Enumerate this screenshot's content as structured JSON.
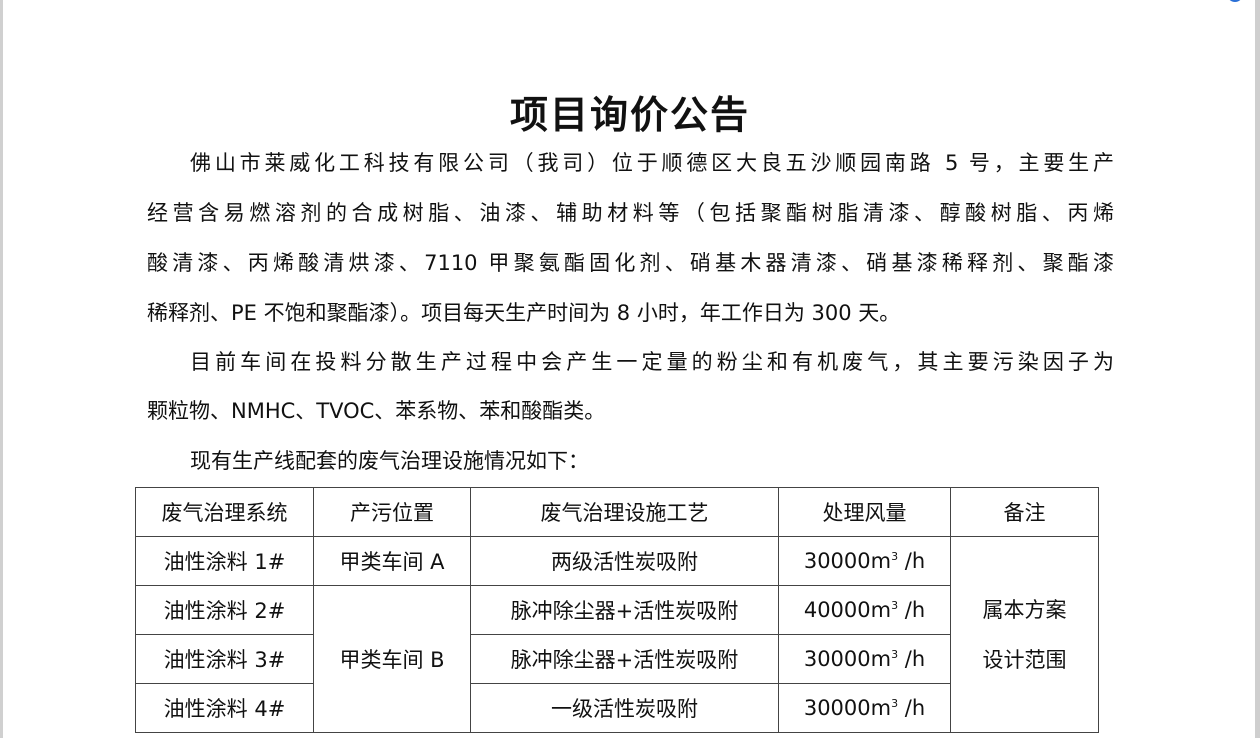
{
  "title": "项目询价公告",
  "paragraphs": [
    [
      "佛山市莱威化工科技有限公司（我司）位于顺德区大良五沙顺园南路 5 号，主要生产",
      "经营含易燃溶剂的合成树脂、油漆、辅助材料等（包括聚酯树脂清漆、醇酸树脂、丙烯",
      "酸清漆、丙烯酸清烘漆、7110 甲聚氨酯固化剂、硝基木器清漆、硝基漆稀释剂、聚酯漆",
      "稀释剂、PE 不饱和聚酯漆）。项目每天生产时间为 8 小时，年工作日为 300 天。"
    ],
    [
      "目前车间在投料分散生产过程中会产生一定量的粉尘和有机废气，其主要污染因子为",
      "颗粒物、NMHC、TVOC、苯系物、苯和酸酯类。"
    ],
    [
      "现有生产线配套的废气治理设施情况如下："
    ]
  ],
  "table": {
    "headers": [
      "废气治理系统",
      "产污位置",
      "废气治理设施工艺",
      "处理风量",
      "备注"
    ],
    "rows": [
      {
        "system": "油性涂料  1#",
        "location": "甲类车间 A",
        "process": "两级活性炭吸附",
        "flow": "30000m",
        "unit": " /h"
      },
      {
        "system": "油性涂料  2#",
        "location": "甲类车间 B",
        "process": "脉冲除尘器+活性炭吸附",
        "flow": "40000m",
        "unit": " /h"
      },
      {
        "system": "油性涂料  3#",
        "process": "脉冲除尘器+活性炭吸附",
        "flow": "30000m",
        "unit": " /h"
      },
      {
        "system": "油性涂料  4#",
        "process": "一级活性炭吸附",
        "flow": "30000m",
        "unit": " /h"
      }
    ],
    "sup": "3",
    "remark_lines": [
      "属本方案",
      "设计范围"
    ]
  }
}
